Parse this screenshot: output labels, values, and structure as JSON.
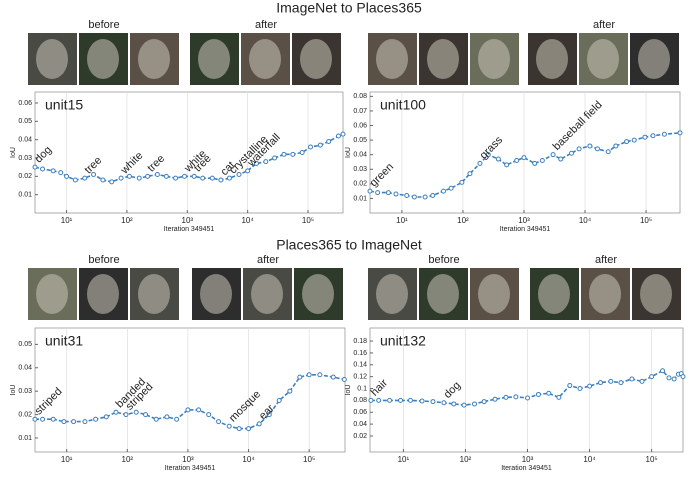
{
  "sections": [
    {
      "title": "ImageNet to Places365",
      "thumbnail_labels": [
        [
          "before",
          "after"
        ],
        [
          "after"
        ]
      ]
    },
    {
      "title": "Places365 to ImageNet",
      "thumbnail_labels": [
        [
          "before",
          "after"
        ],
        [
          "before",
          "after"
        ]
      ]
    }
  ],
  "chart_data": [
    {
      "type": "line",
      "title": "unit15",
      "x_label": "Iteration 349451",
      "y_label": "IoU",
      "xscale": "log",
      "grid": true,
      "color": "#3d7fbf",
      "xlim": [
        3,
        380000
      ],
      "ylim": [
        0,
        0.066
      ],
      "xticks": [
        {
          "value": 10,
          "label": "10¹"
        },
        {
          "value": 100,
          "label": "10²"
        },
        {
          "value": 1000,
          "label": "10³"
        },
        {
          "value": 10000,
          "label": "10⁴"
        },
        {
          "value": 100000,
          "label": "10⁵"
        }
      ],
      "yticks": [
        0.01,
        0.02,
        0.03,
        0.04,
        0.05,
        0.06
      ],
      "x": [
        3,
        4,
        6,
        8,
        10,
        14,
        20,
        28,
        40,
        56,
        80,
        110,
        160,
        220,
        320,
        450,
        640,
        900,
        1300,
        1800,
        2600,
        3600,
        5000,
        7200,
        10000,
        14000,
        20000,
        28000,
        40000,
        56000,
        80000,
        110000,
        160000,
        220000,
        320000,
        380000
      ],
      "values": [
        0.025,
        0.024,
        0.023,
        0.022,
        0.02,
        0.018,
        0.019,
        0.021,
        0.018,
        0.017,
        0.019,
        0.02,
        0.019,
        0.02,
        0.021,
        0.02,
        0.019,
        0.02,
        0.02,
        0.019,
        0.019,
        0.018,
        0.019,
        0.021,
        0.023,
        0.027,
        0.028,
        0.03,
        0.032,
        0.032,
        0.033,
        0.036,
        0.037,
        0.039,
        0.042,
        0.043
      ],
      "annotations": [
        {
          "text": "dog",
          "x": 3,
          "y": 0.025
        },
        {
          "text": "tree",
          "x": 20,
          "y": 0.019
        },
        {
          "text": "white",
          "x": 80,
          "y": 0.019
        },
        {
          "text": "tree",
          "x": 220,
          "y": 0.02
        },
        {
          "text": "white",
          "x": 900,
          "y": 0.02
        },
        {
          "text": "tree",
          "x": 1300,
          "y": 0.02
        },
        {
          "text": "cat",
          "x": 3600,
          "y": 0.018
        },
        {
          "text": "crystalline",
          "x": 5000,
          "y": 0.019
        },
        {
          "text": "waterfall",
          "x": 10000,
          "y": 0.023
        }
      ]
    },
    {
      "type": "line",
      "title": "unit100",
      "x_label": "Iteration 349451",
      "y_label": "IoU",
      "xscale": "log",
      "grid": true,
      "color": "#3d7fbf",
      "xlim": [
        3,
        360000
      ],
      "ylim": [
        0,
        0.083
      ],
      "xticks": [
        {
          "value": 10,
          "label": "10¹"
        },
        {
          "value": 100,
          "label": "10²"
        },
        {
          "value": 1000,
          "label": "10³"
        },
        {
          "value": 10000,
          "label": "10⁴"
        },
        {
          "value": 100000,
          "label": "10⁵"
        }
      ],
      "yticks": [
        0.01,
        0.02,
        0.03,
        0.04,
        0.05,
        0.06,
        0.07,
        0.08
      ],
      "x": [
        3,
        4,
        6,
        8,
        12,
        16,
        24,
        32,
        48,
        64,
        96,
        130,
        190,
        260,
        380,
        520,
        760,
        1000,
        1500,
        2000,
        3000,
        4000,
        6000,
        8000,
        12000,
        16000,
        24000,
        32000,
        48000,
        64000,
        96000,
        130000,
        200000,
        360000
      ],
      "values": [
        0.015,
        0.014,
        0.014,
        0.013,
        0.012,
        0.011,
        0.011,
        0.012,
        0.015,
        0.017,
        0.021,
        0.027,
        0.034,
        0.04,
        0.037,
        0.033,
        0.036,
        0.038,
        0.034,
        0.036,
        0.04,
        0.037,
        0.041,
        0.044,
        0.046,
        0.044,
        0.042,
        0.046,
        0.049,
        0.05,
        0.052,
        0.053,
        0.054,
        0.055
      ],
      "annotations": [
        {
          "text": "green",
          "x": 3,
          "y": 0.015
        },
        {
          "text": "grass",
          "x": 190,
          "y": 0.034
        },
        {
          "text": "baseball field",
          "x": 3000,
          "y": 0.04
        }
      ]
    },
    {
      "type": "line",
      "title": "unit31",
      "x_label": "Iteration 349451",
      "y_label": "IoU",
      "xscale": "log",
      "grid": true,
      "color": "#3d7fbf",
      "xlim": [
        3,
        390000
      ],
      "ylim": [
        0.004,
        0.057
      ],
      "xticks": [
        {
          "value": 10,
          "label": "10¹"
        },
        {
          "value": 100,
          "label": "10²"
        },
        {
          "value": 1000,
          "label": "10³"
        },
        {
          "value": 10000,
          "label": "10⁴"
        },
        {
          "value": 100000,
          "label": "10⁵"
        }
      ],
      "yticks": [
        0.01,
        0.02,
        0.03,
        0.04,
        0.05
      ],
      "x": [
        3,
        4,
        6,
        9,
        13,
        20,
        30,
        45,
        65,
        95,
        140,
        200,
        300,
        450,
        650,
        1000,
        1500,
        2200,
        3200,
        4800,
        7000,
        10000,
        15000,
        22000,
        32000,
        48000,
        70000,
        100000,
        150000,
        250000,
        380000
      ],
      "values": [
        0.018,
        0.018,
        0.018,
        0.017,
        0.017,
        0.017,
        0.018,
        0.019,
        0.021,
        0.02,
        0.021,
        0.02,
        0.018,
        0.019,
        0.018,
        0.022,
        0.022,
        0.02,
        0.017,
        0.015,
        0.014,
        0.014,
        0.016,
        0.02,
        0.026,
        0.03,
        0.036,
        0.037,
        0.037,
        0.036,
        0.035
      ],
      "annotations": [
        {
          "text": "striped",
          "x": 3,
          "y": 0.018
        },
        {
          "text": "banded",
          "x": 65,
          "y": 0.021
        },
        {
          "text": "striped",
          "x": 95,
          "y": 0.02
        },
        {
          "text": "mosque",
          "x": 4800,
          "y": 0.015
        },
        {
          "text": "ear",
          "x": 15000,
          "y": 0.016
        }
      ]
    },
    {
      "type": "line",
      "title": "unit132",
      "x_label": "Iteration 349451",
      "y_label": "IoU",
      "xscale": "log",
      "grid": true,
      "color": "#3d7fbf",
      "xlim": [
        2.9,
        320000
      ],
      "ylim": [
        -0.007,
        0.202
      ],
      "xticks": [
        {
          "value": 10,
          "label": "10¹"
        },
        {
          "value": 100,
          "label": "10²"
        },
        {
          "value": 1000,
          "label": "10³"
        },
        {
          "value": 10000,
          "label": "10⁴"
        },
        {
          "value": 100000,
          "label": "10⁵"
        }
      ],
      "yticks": [
        0.02,
        0.04,
        0.06,
        0.08,
        0.1,
        0.12,
        0.14,
        0.16,
        0.18
      ],
      "x": [
        3,
        4,
        6,
        9,
        13,
        20,
        30,
        45,
        65,
        95,
        140,
        200,
        300,
        450,
        650,
        1000,
        1500,
        2200,
        3200,
        4800,
        7000,
        10000,
        15000,
        22000,
        32000,
        48000,
        70000,
        100000,
        150000,
        190000,
        230000,
        270000,
        300000,
        320000
      ],
      "values": [
        0.08,
        0.08,
        0.08,
        0.08,
        0.08,
        0.079,
        0.078,
        0.076,
        0.074,
        0.072,
        0.074,
        0.078,
        0.082,
        0.085,
        0.086,
        0.084,
        0.09,
        0.092,
        0.085,
        0.105,
        0.1,
        0.104,
        0.11,
        0.112,
        0.11,
        0.116,
        0.112,
        0.12,
        0.13,
        0.118,
        0.116,
        0.124,
        0.125,
        0.12
      ],
      "annotations": [
        {
          "text": "hair",
          "x": 3,
          "y": 0.08
        },
        {
          "text": "dog",
          "x": 45,
          "y": 0.076
        }
      ]
    }
  ]
}
